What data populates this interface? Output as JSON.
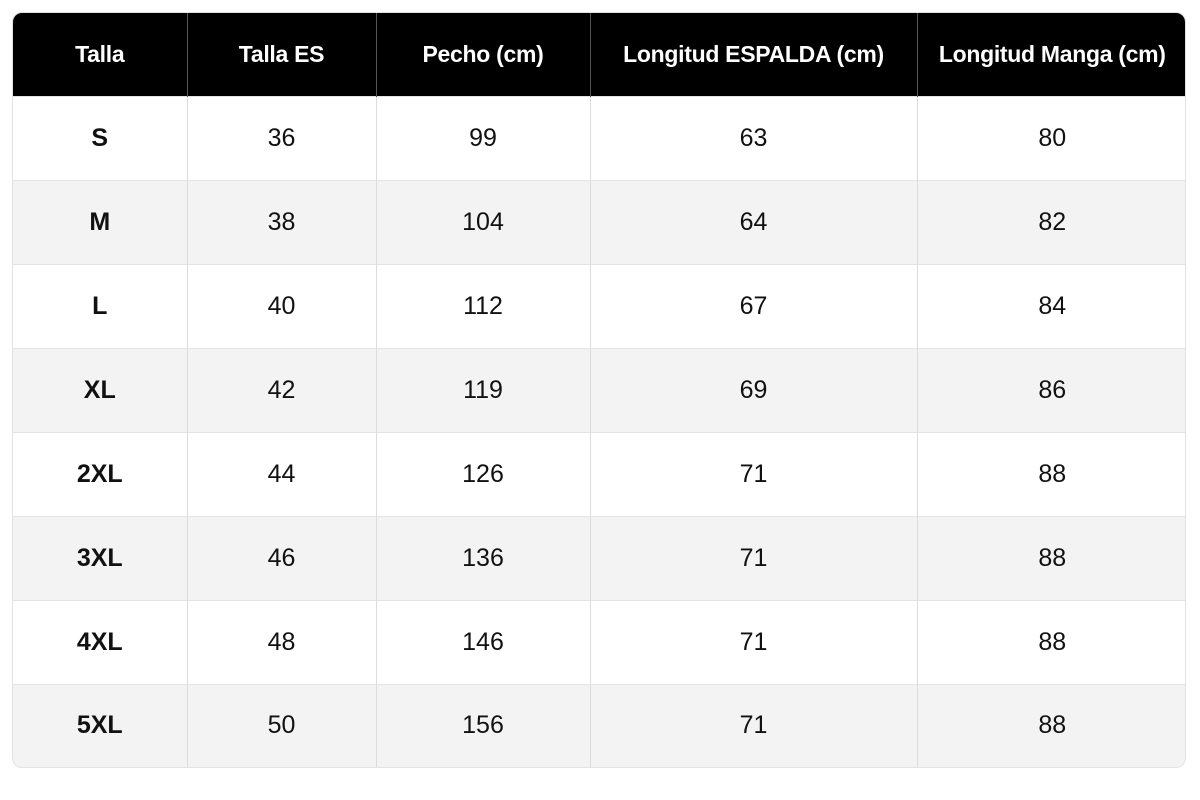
{
  "table": {
    "header": [
      "Talla",
      "Talla ES",
      "Pecho (cm)",
      "Longitud ESPALDA (cm)",
      "Longitud Manga (cm)"
    ],
    "rows": [
      [
        "S",
        36,
        99,
        63,
        80
      ],
      [
        "M",
        38,
        104,
        64,
        82
      ],
      [
        "L",
        40,
        112,
        67,
        84
      ],
      [
        "XL",
        42,
        119,
        69,
        86
      ],
      [
        "2XL",
        44,
        126,
        71,
        88
      ],
      [
        "3XL",
        46,
        136,
        71,
        88
      ],
      [
        "4XL",
        48,
        146,
        71,
        88
      ],
      [
        "5XL",
        50,
        156,
        71,
        88
      ]
    ]
  }
}
